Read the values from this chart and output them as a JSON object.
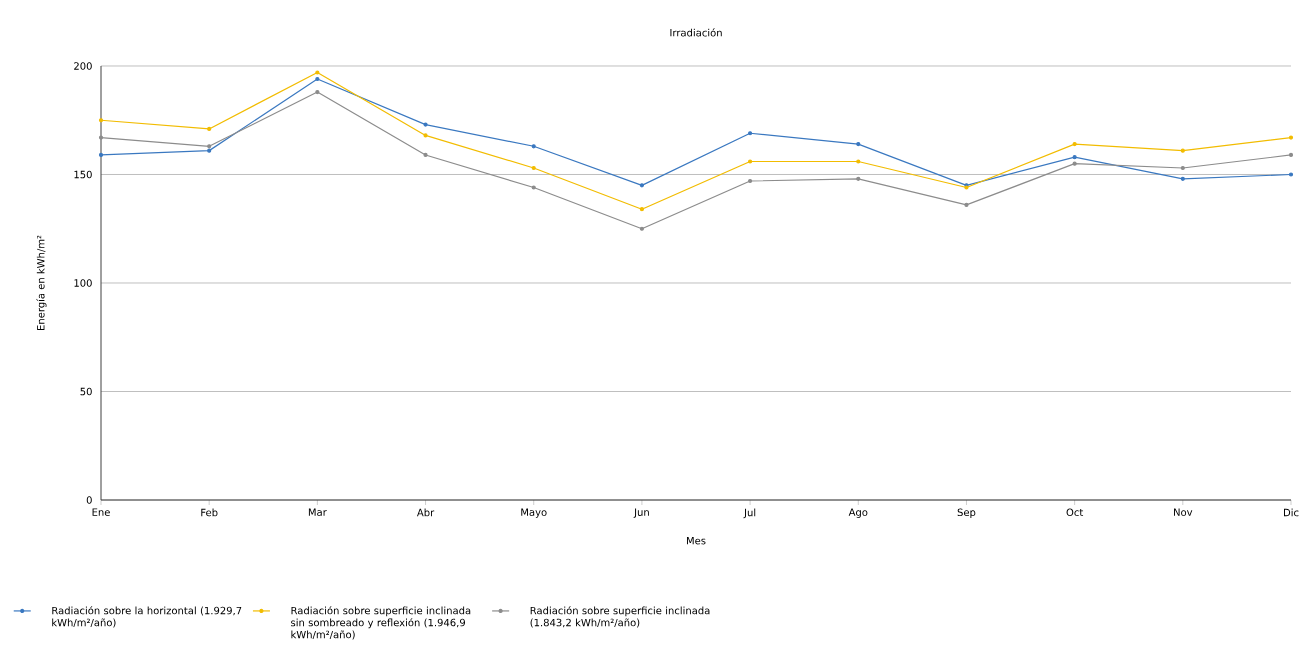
{
  "chart_data": {
    "type": "line",
    "title": "Irradiación",
    "xlabel": "Mes",
    "ylabel": "Energía en kWh/m²",
    "categories": [
      "Ene",
      "Feb",
      "Mar",
      "Abr",
      "Mayo",
      "Jun",
      "Jul",
      "Ago",
      "Sep",
      "Oct",
      "Nov",
      "Dic"
    ],
    "series": [
      {
        "name": "Radiación sobre la horizontal (1.929,7 kWh/m²/año)",
        "color": "#3a78c0",
        "values": [
          159,
          161,
          194,
          173,
          163,
          145,
          169,
          164,
          145,
          158,
          148,
          150
        ]
      },
      {
        "name": "Radiación sobre superficie inclinada sin sombreado y reflexión (1.946,9 kWh/m²/año)",
        "color": "#f2bc00",
        "values": [
          175,
          171,
          197,
          168,
          153,
          134,
          156,
          156,
          144,
          164,
          161,
          167
        ]
      },
      {
        "name": "Radiación sobre superficie inclinada (1.843,2 kWh/m²/año)",
        "color": "#8c8c8c",
        "values": [
          167,
          163,
          188,
          159,
          144,
          125,
          147,
          148,
          136,
          155,
          153,
          159
        ]
      }
    ],
    "ylim": [
      0,
      200
    ],
    "yticks": [
      0,
      50,
      100,
      150,
      200
    ],
    "grid": "y",
    "legend": "bottom",
    "marker": "circle"
  }
}
